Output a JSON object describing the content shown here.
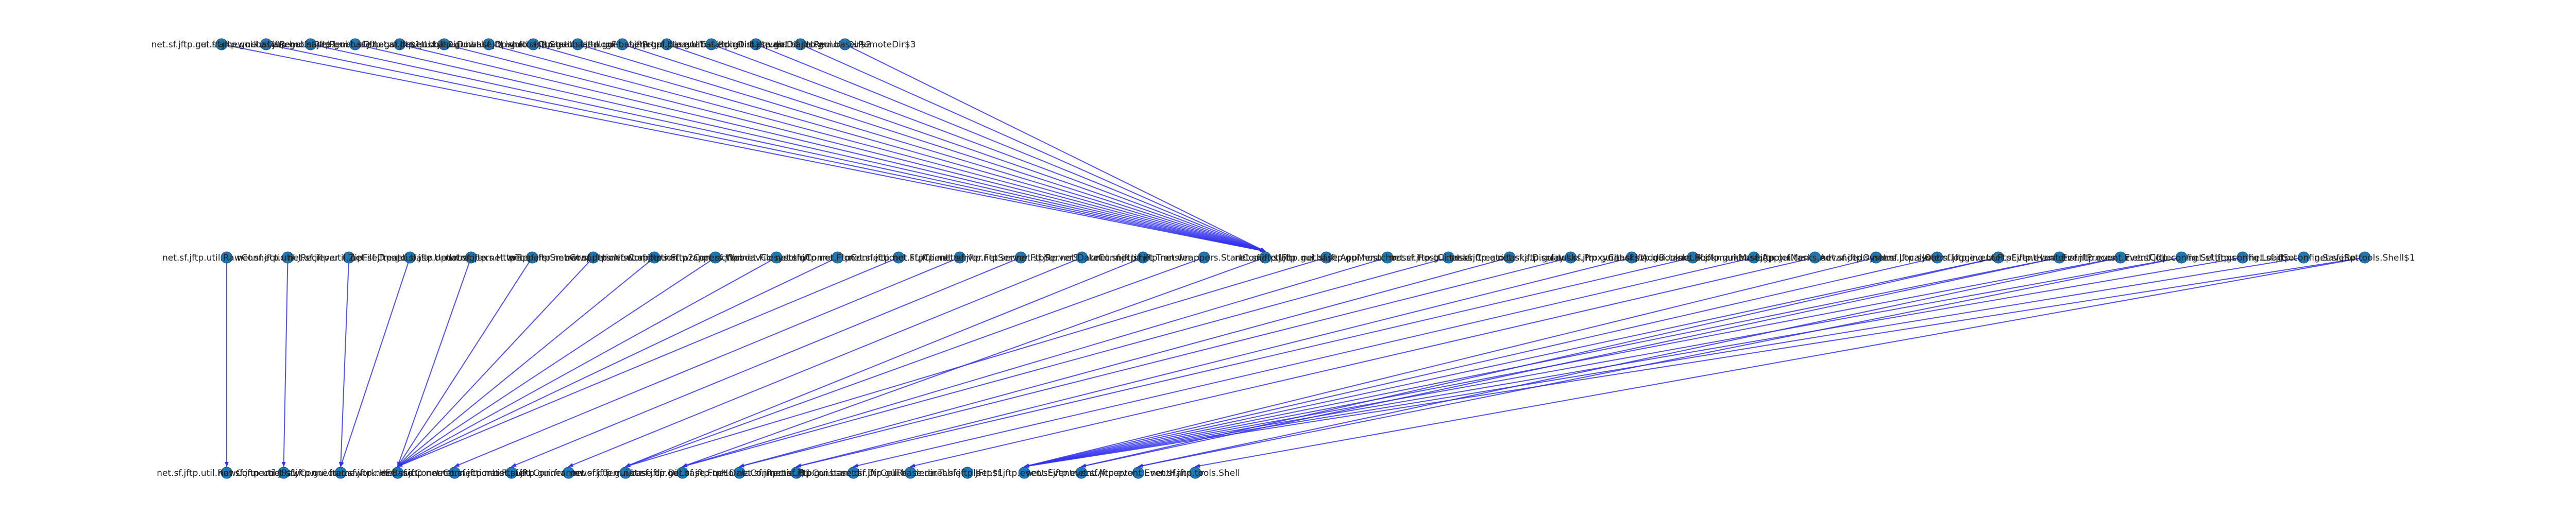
{
  "graph": {
    "layers": [
      {
        "name": "top",
        "nodes": [
          {
            "id": "T0",
            "label": "net.sf.jftp.gui.framework.HPanel"
          },
          {
            "id": "T1",
            "label": "net.sf.jftp.gui.base.RemoteDir$1"
          },
          {
            "id": "T2",
            "label": "net.sf.jftp.gui.base.RemoteDir"
          },
          {
            "id": "T3",
            "label": "net.sf.jftp.gui.base.LocalDir$1"
          },
          {
            "id": "T4",
            "label": "net.sf.jftp.gui.base.LocalDir"
          },
          {
            "id": "T5",
            "label": "net.sf.jftp.gui.base.DownloadList"
          },
          {
            "id": "T6",
            "label": "net.sf.jftp.gui.base.DownloadQueue"
          },
          {
            "id": "T7",
            "label": "net.sf.jftp.gui.base.StatusPanel"
          },
          {
            "id": "T8",
            "label": "net.sf.jftp.gui.base.LogFlusher"
          },
          {
            "id": "T9",
            "label": "net.sf.jftp.gui.base.Properties"
          },
          {
            "id": "T10",
            "label": "net.sf.jftp.gui.base.UITester"
          },
          {
            "id": "T11",
            "label": "net.sf.jftp.gui.base.dir.DirCanvas"
          },
          {
            "id": "T12",
            "label": "net.sf.jftp.gui.base.dir.DirEntry"
          },
          {
            "id": "T13",
            "label": "net.sf.jftp.gui.base.RemoteDir$2"
          },
          {
            "id": "T14",
            "label": "net.sf.jftp.gui.base.RemoteDir$3"
          }
        ]
      },
      {
        "name": "middle",
        "nodes": [
          {
            "id": "M0",
            "label": "net.sf.jftp.util.RawConnection"
          },
          {
            "id": "M1",
            "label": "net.sf.jftp.util.JReciever"
          },
          {
            "id": "M2",
            "label": "net.sf.jftp.util.ZipFileCreator"
          },
          {
            "id": "M3",
            "label": "net.sf.jftp.gui.base.Updater"
          },
          {
            "id": "M4",
            "label": "net.sf.jftp.net.wrappers.HttpTransfer"
          },
          {
            "id": "M5",
            "label": "net.sf.jftp.net.wrappers.SmbConnection"
          },
          {
            "id": "M6",
            "label": "net.sf.jftp.net.wrappers.NfsConnection"
          },
          {
            "id": "M7",
            "label": "net.sf.jftp.net.wrappers.Sftp2Connection"
          },
          {
            "id": "M8",
            "label": "net.sf.jftp.net.wrappers.WebdavConnection"
          },
          {
            "id": "M9",
            "label": "net.sf.jftp.net.FilesystemConnection"
          },
          {
            "id": "M10",
            "label": "net.sf.jftp.net.FtpConnection"
          },
          {
            "id": "M11",
            "label": "net.sf.jftp.net.FtpClient"
          },
          {
            "id": "M12",
            "label": "net.sf.jftp.net.server.FtpServer"
          },
          {
            "id": "M13",
            "label": "net.sf.jftp.net.server.FtpServerSocket"
          },
          {
            "id": "M14",
            "label": "net.sf.jftp.net.DataConnection"
          },
          {
            "id": "M15",
            "label": "net.sf.jftp.net.Transfer"
          },
          {
            "id": "M16",
            "label": "net.sf.jftp.net.wrappers.StartConnection"
          },
          {
            "id": "M17",
            "label": "net.sf.jftp.JFtp"
          },
          {
            "id": "M18",
            "label": "net.sf.jftp.gui.base.AppMenuBar"
          },
          {
            "id": "M19",
            "label": "net.sf.jftp.gui.hostchooser.HostChooser"
          },
          {
            "id": "M20",
            "label": "net.sf.jftp.gui.tasks.Creator"
          },
          {
            "id": "M21",
            "label": "net.sf.jftp.gui.tasks.Displayer"
          },
          {
            "id": "M22",
            "label": "net.sf.jftp.gui.tasks.ProxyChooser"
          },
          {
            "id": "M23",
            "label": "net.sf.jftp.gui.tasks.AddBookmarks"
          },
          {
            "id": "M24",
            "label": "net.sf.jftp.gui.tasks.BookmarkManager"
          },
          {
            "id": "M25",
            "label": "net.sf.jftp.gui.base.AppletMenuBar"
          },
          {
            "id": "M26",
            "label": "net.sf.jftp.gui.tasks.AdvancedOptions"
          },
          {
            "id": "M27",
            "label": "net.sf.jftp.system.LocalIO"
          },
          {
            "id": "M28",
            "label": "net.sf.jftp.system.logging.Log"
          },
          {
            "id": "M29",
            "label": "net.sf.jftp.event.FtpEventHandler"
          },
          {
            "id": "M30",
            "label": "net.sf.jftp.event.EventProcessor"
          },
          {
            "id": "M31",
            "label": "net.sf.jftp.event.EventCollector"
          },
          {
            "id": "M32",
            "label": "net.sf.jftp.config.Settings"
          },
          {
            "id": "M33",
            "label": "net.sf.jftp.config.LoadSet"
          },
          {
            "id": "M34",
            "label": "net.sf.jftp.config.SaveSet"
          },
          {
            "id": "M35",
            "label": "net.sf.jftp.tools.Shell$1"
          }
        ]
      },
      {
        "name": "bottom",
        "nodes": [
          {
            "id": "B0",
            "label": "net.sf.jftp.util.RawConnection$1"
          },
          {
            "id": "B1",
            "label": "net.sf.jftp.util.JRawConnection"
          },
          {
            "id": "B2",
            "label": "net.sf.jftp.gui.framework.HFrame"
          },
          {
            "id": "B3",
            "label": "net.sf.jftp.net.BasicConnection"
          },
          {
            "id": "B4",
            "label": "net.sf.jftp.net.ConnectionListener"
          },
          {
            "id": "B5",
            "label": "net.sf.jftp.net.FtpURLConnection"
          },
          {
            "id": "B6",
            "label": "net.sf.jftp.gui.framework.Template"
          },
          {
            "id": "B7",
            "label": "net.sf.jftp.gui.base.dir.Dir"
          },
          {
            "id": "B8",
            "label": "net.sf.jftp.gui.base.FtpHost"
          },
          {
            "id": "B9",
            "label": "net.sf.jftp.net.DataConnection$1"
          },
          {
            "id": "B10",
            "label": "net.sf.jftp.net.FtpConstants"
          },
          {
            "id": "B11",
            "label": "net.sf.jftp.gui.base.dir.DirCellRenderer"
          },
          {
            "id": "B12",
            "label": "net.sf.jftp.gui.base.dir.TableUtils"
          },
          {
            "id": "B13",
            "label": "net.sf.jftp.JFtp$1"
          },
          {
            "id": "B14",
            "label": "net.sf.jftp.event.Event"
          },
          {
            "id": "B15",
            "label": "net.sf.jftp.event.Acceptor"
          },
          {
            "id": "B16",
            "label": "net.sf.jftp.event.EventHandler"
          },
          {
            "id": "B17",
            "label": "net.sf.jftp.tools.Shell"
          }
        ]
      }
    ],
    "edges": [
      [
        "T0",
        "M17"
      ],
      [
        "T1",
        "M17"
      ],
      [
        "T2",
        "M17"
      ],
      [
        "T3",
        "M17"
      ],
      [
        "T4",
        "M17"
      ],
      [
        "T5",
        "M17"
      ],
      [
        "T6",
        "M17"
      ],
      [
        "T7",
        "M17"
      ],
      [
        "T8",
        "M17"
      ],
      [
        "T9",
        "M17"
      ],
      [
        "T10",
        "M17"
      ],
      [
        "T11",
        "M17"
      ],
      [
        "T12",
        "M17"
      ],
      [
        "T13",
        "M17"
      ],
      [
        "T14",
        "M17"
      ],
      [
        "M0",
        "B0"
      ],
      [
        "M1",
        "B1"
      ],
      [
        "M2",
        "B2"
      ],
      [
        "M3",
        "B2"
      ],
      [
        "M4",
        "B3"
      ],
      [
        "M5",
        "B3"
      ],
      [
        "M6",
        "B3"
      ],
      [
        "M7",
        "B3"
      ],
      [
        "M8",
        "B3"
      ],
      [
        "M9",
        "B3"
      ],
      [
        "M10",
        "B3"
      ],
      [
        "M11",
        "B3"
      ],
      [
        "M12",
        "B4"
      ],
      [
        "M13",
        "B5"
      ],
      [
        "M14",
        "B6"
      ],
      [
        "M15",
        "B7"
      ],
      [
        "M16",
        "B7"
      ],
      [
        "M17",
        "B8"
      ],
      [
        "M18",
        "B7"
      ],
      [
        "M19",
        "B8"
      ],
      [
        "M20",
        "B8"
      ],
      [
        "M21",
        "B9"
      ],
      [
        "M22",
        "B9"
      ],
      [
        "M23",
        "B10"
      ],
      [
        "M24",
        "B10"
      ],
      [
        "M25",
        "B11"
      ],
      [
        "M26",
        "B12"
      ],
      [
        "M27",
        "B14"
      ],
      [
        "M28",
        "B14"
      ],
      [
        "M29",
        "B14"
      ],
      [
        "M30",
        "B14"
      ],
      [
        "M31",
        "B14"
      ],
      [
        "M32",
        "B14"
      ],
      [
        "M33",
        "B14"
      ],
      [
        "M34",
        "B14"
      ],
      [
        "M35",
        "B14"
      ],
      [
        "M29",
        "B15"
      ],
      [
        "M30",
        "B15"
      ],
      [
        "M31",
        "B16"
      ],
      [
        "M32",
        "B16"
      ],
      [
        "M35",
        "B17"
      ]
    ]
  },
  "colors": {
    "edge": "#3333ee",
    "node": "#1f78b4",
    "label": "#222222",
    "background": "#ffffff"
  }
}
